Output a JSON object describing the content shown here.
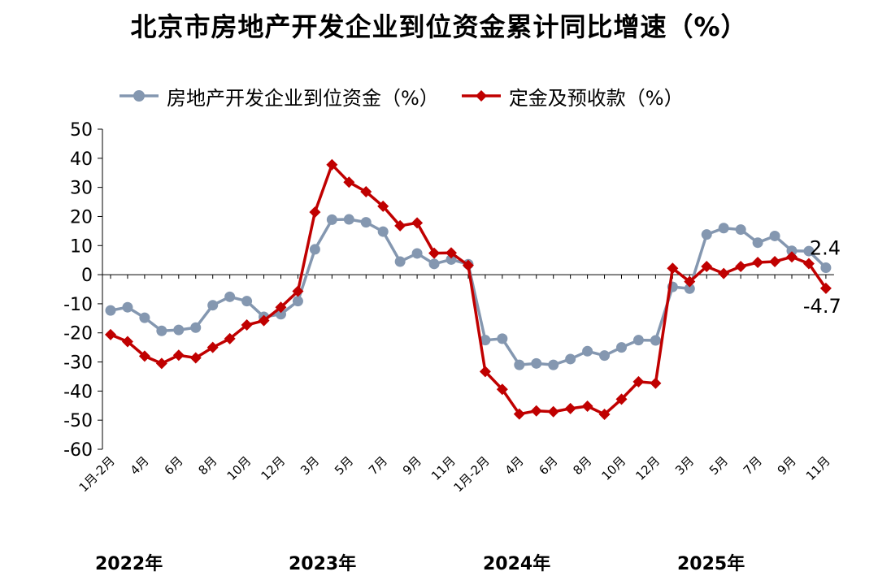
{
  "title": "北京市房地产开发企业到位资金累计同比增速（%）",
  "chart_data": {
    "type": "line",
    "title": "北京市房地产开发企业到位资金累计同比增速（%）",
    "xlabel": "",
    "ylabel": "",
    "ylim": [
      -60,
      50
    ],
    "yticks": [
      50,
      40,
      30,
      20,
      10,
      0,
      -10,
      -20,
      -30,
      -40,
      -50,
      -60
    ],
    "legend_position": "top",
    "grid": false,
    "years": [
      "2022年",
      "2023年",
      "2024年",
      "2025年"
    ],
    "categories": [
      "1月-2月",
      "3月",
      "4月",
      "5月",
      "6月",
      "7月",
      "8月",
      "9月",
      "10月",
      "11月",
      "12月",
      "1月-2月",
      "3月",
      "4月",
      "5月",
      "6月",
      "7月",
      "8月",
      "9月",
      "10月",
      "11月",
      "12月",
      "1月-2月",
      "3月",
      "4月",
      "5月",
      "6月",
      "7月",
      "8月",
      "9月",
      "10月",
      "11月",
      "12月",
      "1月-2月",
      "3月",
      "4月",
      "5月",
      "6月",
      "7月",
      "8月",
      "9月",
      "10月",
      "11月"
    ],
    "tick_labels": [
      "1月-2月",
      "4月",
      "6月",
      "8月",
      "10月",
      "12月",
      "3月",
      "5月",
      "7月",
      "9月",
      "11月",
      "1月-2月",
      "4月",
      "6月",
      "8月",
      "10月",
      "12月",
      "3月",
      "5月",
      "7月",
      "9月",
      "11月"
    ],
    "tick_indices": [
      0,
      2,
      4,
      6,
      8,
      10,
      12,
      14,
      16,
      18,
      20,
      22,
      24,
      26,
      28,
      30,
      32,
      34,
      36,
      38,
      40,
      42
    ],
    "series": [
      {
        "name": "房地产开发企业到位资金（%）",
        "color": "#8497b0",
        "marker": "circle",
        "values": [
          -12.3,
          -11.2,
          -14.8,
          -19.3,
          -19.0,
          -18.2,
          -10.5,
          -7.6,
          -9.1,
          -14.5,
          -13.6,
          -9.1,
          8.7,
          18.9,
          19.0,
          18.0,
          14.8,
          4.5,
          7.3,
          3.7,
          5.2,
          3.6,
          -22.5,
          -22.0,
          -31.0,
          -30.5,
          -31.0,
          -29.0,
          -26.3,
          -27.8,
          -25.0,
          -22.5,
          -22.6,
          -4.2,
          -4.8,
          13.8,
          16.0,
          15.5,
          11.0,
          13.3,
          8.2,
          8.1,
          2.4
        ],
        "end_label": "2.4"
      },
      {
        "name": "定金及预收款（%）",
        "color": "#c00000",
        "marker": "diamond",
        "values": [
          -20.6,
          -23.0,
          -28.0,
          -30.5,
          -27.7,
          -28.6,
          -25.0,
          -22.0,
          -17.3,
          -15.8,
          -11.2,
          -5.7,
          21.5,
          37.8,
          31.8,
          28.5,
          23.5,
          16.8,
          17.8,
          7.4,
          7.5,
          3.2,
          -33.3,
          -39.4,
          -47.9,
          -46.8,
          -47.1,
          -46.0,
          -45.2,
          -48.0,
          -42.8,
          -36.8,
          -37.3,
          2.2,
          -2.4,
          2.8,
          0.4,
          2.8,
          4.2,
          4.5,
          6.1,
          3.8,
          -4.7
        ],
        "end_label": "-4.7"
      }
    ]
  }
}
